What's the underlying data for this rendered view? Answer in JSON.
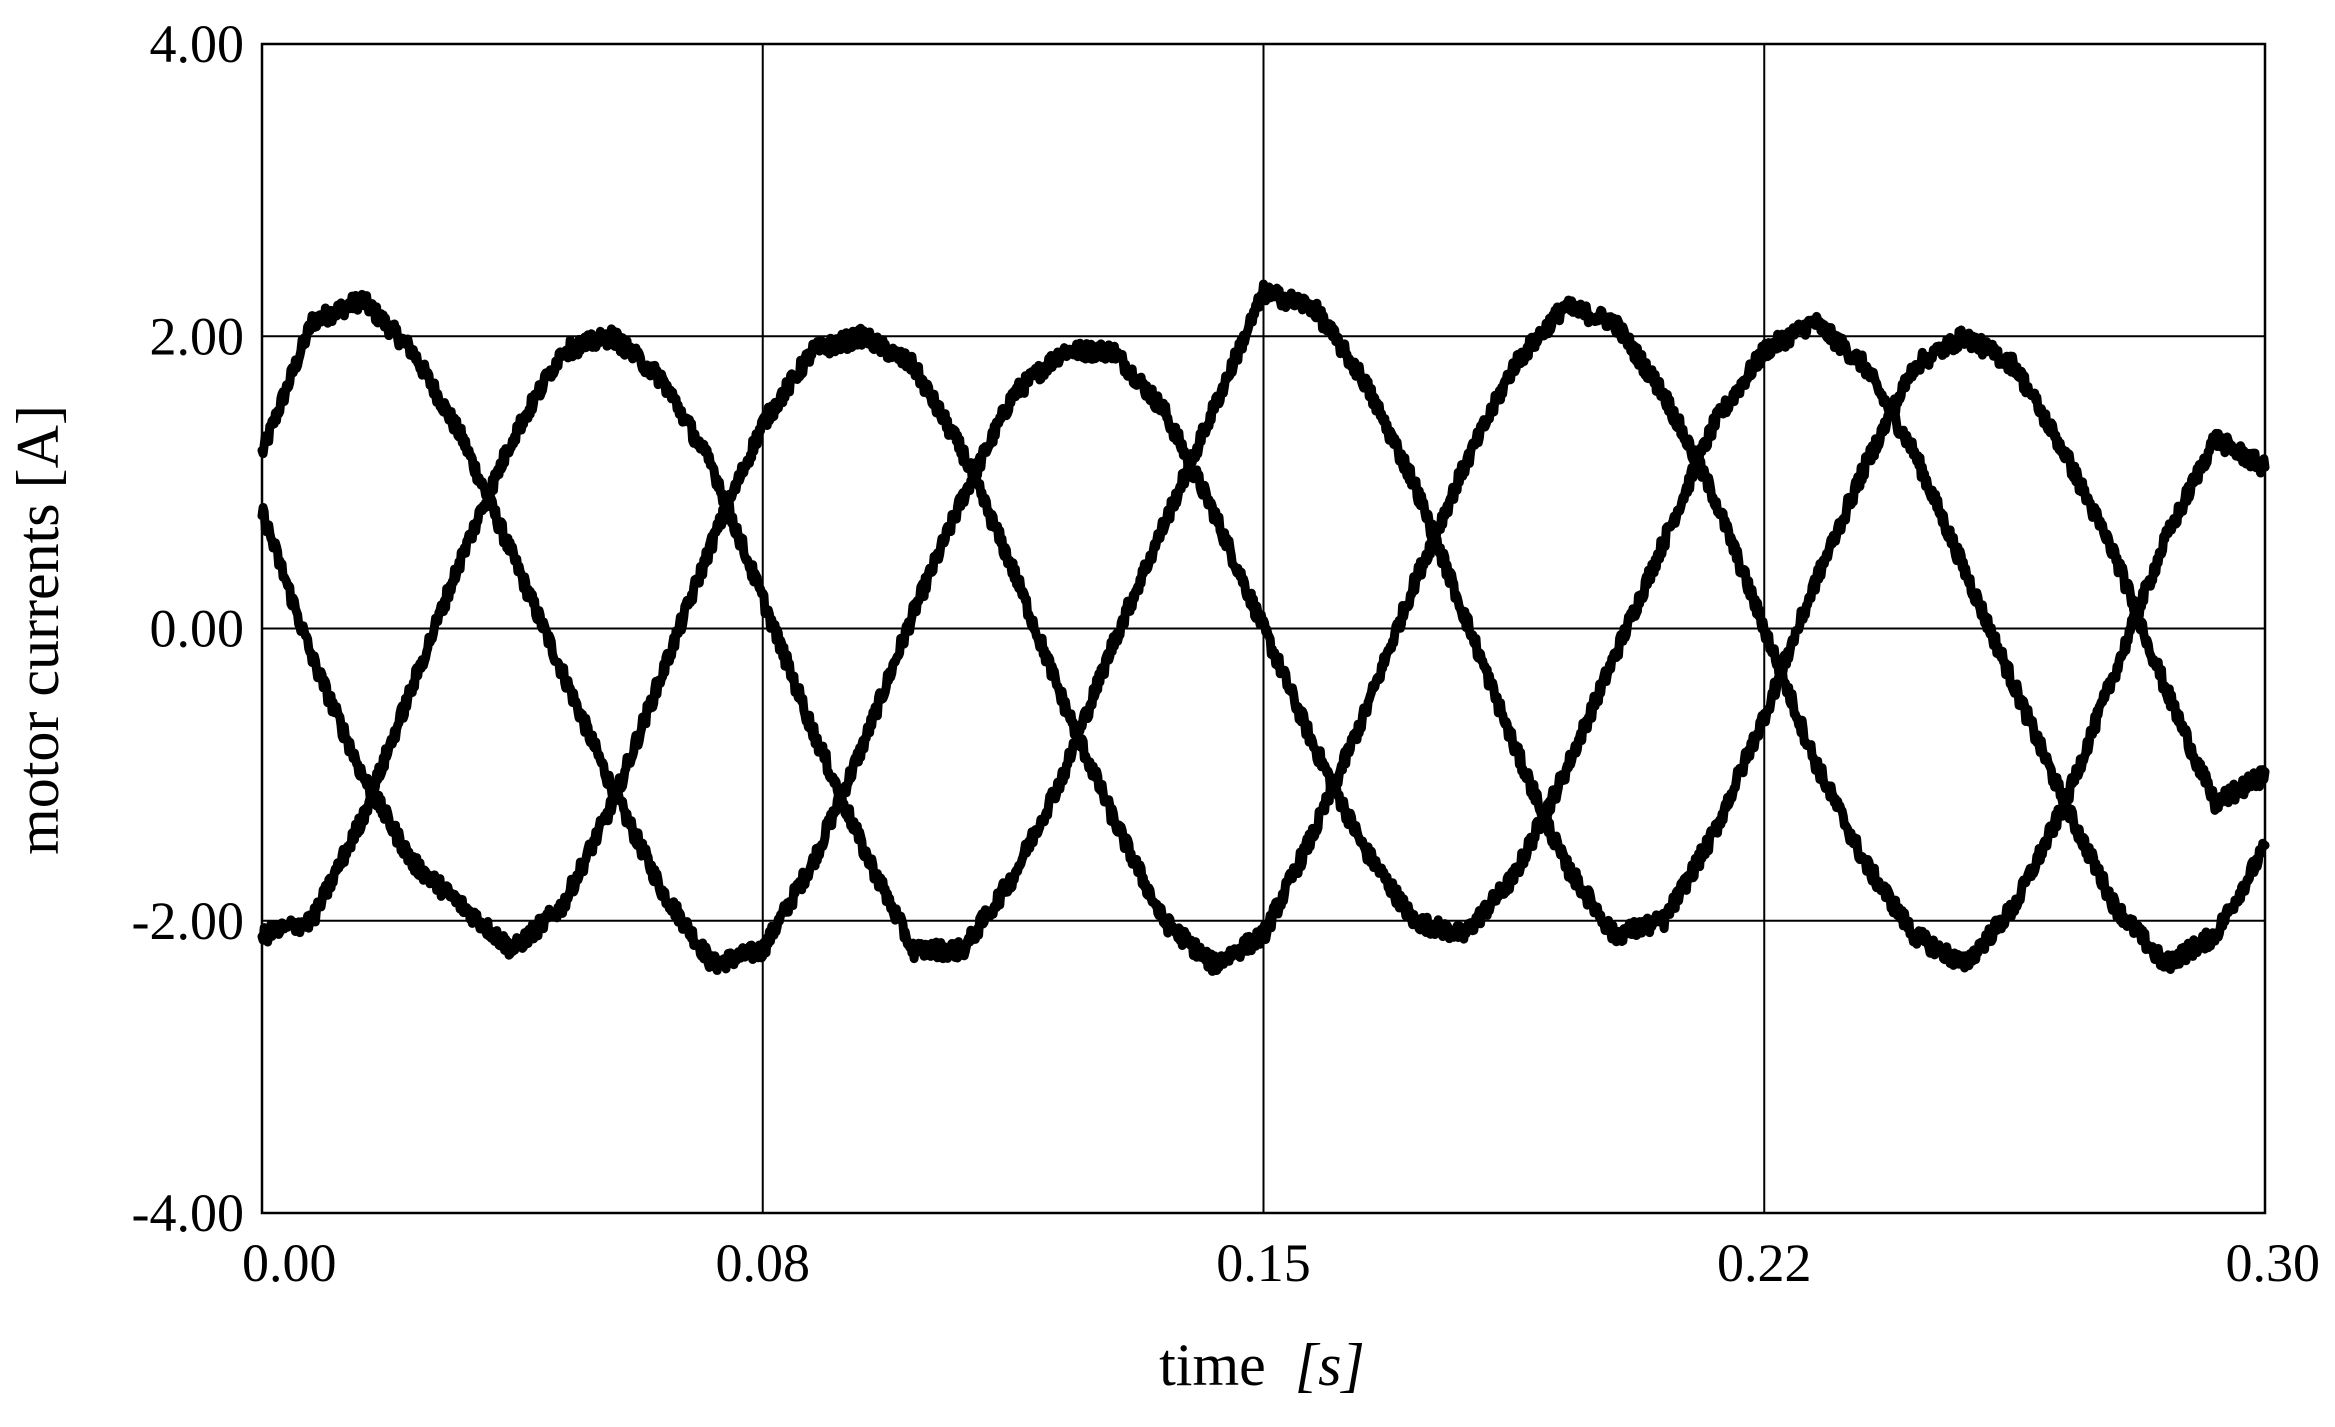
{
  "chart_data": {
    "type": "line",
    "xlabel_main": "time",
    "xlabel_unit": "[s]",
    "ylabel": "motor currents [A]",
    "xlim": [
      0.0,
      0.3
    ],
    "ylim": [
      -4.0,
      4.0
    ],
    "x_ticks": [
      "0.00",
      "0.08",
      "0.15",
      "0.22",
      "0.30"
    ],
    "x_tick_values": [
      0.0,
      0.075,
      0.15,
      0.225,
      0.3
    ],
    "y_ticks": [
      "4.00",
      "2.00",
      "0.00",
      "-2.00",
      "-4.00"
    ],
    "y_tick_values": [
      4.0,
      2.0,
      0.0,
      -2.0,
      -4.0
    ],
    "grid": true,
    "line_color": "#000000",
    "series": [
      {
        "phase_deg": 35,
        "x": [
          0.0,
          0.0075,
          0.015,
          0.0225,
          0.03,
          0.0375,
          0.045,
          0.0525,
          0.06,
          0.0675,
          0.075,
          0.0825,
          0.09,
          0.0975,
          0.105,
          0.1125,
          0.12,
          0.1275,
          0.135,
          0.1425,
          0.15,
          0.1575,
          0.165,
          0.1725,
          0.18,
          0.1875,
          0.195,
          0.2025,
          0.21,
          0.2175,
          0.225,
          0.2325,
          0.24,
          0.2475,
          0.255,
          0.2625,
          0.27,
          0.2775,
          0.285,
          0.2925,
          0.3
        ],
        "y": [
          1.2,
          2.1,
          2.25,
          1.9,
          1.3,
          0.5,
          -0.3,
          -1.1,
          -1.8,
          -2.3,
          -2.2,
          -1.6,
          -0.8,
          0.1,
          0.9,
          1.6,
          1.9,
          1.9,
          1.5,
          0.8,
          0.0,
          -0.8,
          -1.5,
          -2.0,
          -2.1,
          -1.7,
          -1.0,
          -0.2,
          0.6,
          1.4,
          1.9,
          2.1,
          1.8,
          1.2,
          0.4,
          -0.4,
          -1.2,
          -1.9,
          -2.3,
          -2.1,
          -1.5
        ]
      },
      {
        "phase_deg": 155,
        "x": [
          0.0,
          0.0075,
          0.015,
          0.0225,
          0.03,
          0.0375,
          0.045,
          0.0525,
          0.06,
          0.0675,
          0.075,
          0.0825,
          0.09,
          0.0975,
          0.105,
          0.1125,
          0.12,
          0.1275,
          0.135,
          0.1425,
          0.15,
          0.1575,
          0.165,
          0.1725,
          0.18,
          0.1875,
          0.195,
          0.2025,
          0.21,
          0.2175,
          0.225,
          0.2325,
          0.24,
          0.2475,
          0.255,
          0.2625,
          0.27,
          0.2775,
          0.285,
          0.2925,
          0.3
        ],
        "y": [
          0.8,
          -0.2,
          -1.0,
          -1.6,
          -1.9,
          -2.2,
          -1.9,
          -1.2,
          -0.3,
          0.6,
          1.4,
          1.9,
          2.0,
          1.8,
          1.2,
          0.4,
          -0.5,
          -1.3,
          -2.0,
          -2.3,
          -2.1,
          -1.4,
          -0.6,
          0.3,
          1.1,
          1.8,
          2.2,
          2.1,
          1.6,
          0.9,
          0.0,
          -0.9,
          -1.6,
          -2.1,
          -2.3,
          -1.9,
          -1.2,
          -0.3,
          0.6,
          1.3,
          1.1
        ]
      },
      {
        "phase_deg": 275,
        "x": [
          0.0,
          0.0075,
          0.015,
          0.0225,
          0.03,
          0.0375,
          0.045,
          0.0525,
          0.06,
          0.0675,
          0.075,
          0.0825,
          0.09,
          0.0975,
          0.105,
          0.1125,
          0.12,
          0.1275,
          0.135,
          0.1425,
          0.15,
          0.1575,
          0.165,
          0.1725,
          0.18,
          0.1875,
          0.195,
          0.2025,
          0.21,
          0.2175,
          0.225,
          0.2325,
          0.24,
          0.2475,
          0.255,
          0.2625,
          0.27,
          0.2775,
          0.285,
          0.2925,
          0.3
        ],
        "y": [
          -2.1,
          -2.0,
          -1.3,
          -0.4,
          0.5,
          1.3,
          1.9,
          2.0,
          1.7,
          1.1,
          0.2,
          -0.7,
          -1.5,
          -2.2,
          -2.2,
          -1.7,
          -1.0,
          -0.1,
          0.7,
          1.5,
          2.3,
          2.2,
          1.7,
          1.0,
          0.1,
          -0.8,
          -1.6,
          -2.1,
          -2.0,
          -1.4,
          -0.6,
          0.3,
          1.1,
          1.8,
          2.0,
          1.8,
          1.2,
          0.5,
          -0.4,
          -1.2,
          -1.0
        ]
      }
    ]
  }
}
